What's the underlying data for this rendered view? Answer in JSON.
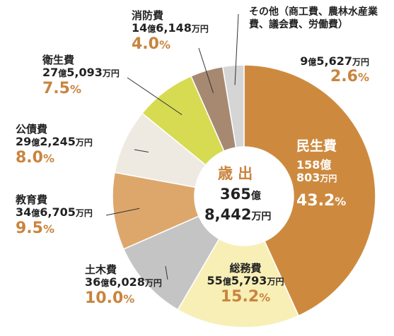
{
  "chart_data": {
    "type": "pie",
    "title": "",
    "center": {
      "title": "歳 出",
      "amount_oku": "365",
      "amount_oku_unit": "億",
      "amount_man": "8,442",
      "amount_man_unit": "万円"
    },
    "slices": [
      {
        "name": "民生費",
        "oku": "158",
        "man": "803",
        "percent": 43.2,
        "percent_label": "43.2",
        "color": "#cd8a3f"
      },
      {
        "name": "総務費",
        "oku": "55",
        "man": "5,793",
        "percent": 15.2,
        "percent_label": "15.2",
        "color": "#f7efb6"
      },
      {
        "name": "土木費",
        "oku": "36",
        "man": "6,028",
        "percent": 10.0,
        "percent_label": "10.0",
        "color": "#c4c4c4"
      },
      {
        "name": "教育費",
        "oku": "34",
        "man": "6,705",
        "percent": 9.5,
        "percent_label": "9.5",
        "color": "#dda76c"
      },
      {
        "name": "公債費",
        "oku": "29",
        "man": "2,245",
        "percent": 8.0,
        "percent_label": "8.0",
        "color": "#eeeae2"
      },
      {
        "name": "衛生費",
        "oku": "27",
        "man": "5,093",
        "percent": 7.5,
        "percent_label": "7.5",
        "color": "#d6db52"
      },
      {
        "name": "消防費",
        "oku": "14",
        "man": "6,148",
        "percent": 4.0,
        "percent_label": "4.0",
        "color": "#a78972"
      },
      {
        "name": "その他（商工費、農林水産業費、議会費、労働費）",
        "oku": "9",
        "man": "5,627",
        "percent": 2.6,
        "percent_label": "2.6",
        "color": "#d5d5d5"
      }
    ],
    "units": {
      "oku": "億",
      "man": "万円",
      "percent": "%"
    },
    "colors": {
      "percent_text": "#c9843e",
      "percent_text_on_dark": "#ffffff",
      "leader_line": "#333333",
      "center_fill": "#ffffff"
    }
  }
}
